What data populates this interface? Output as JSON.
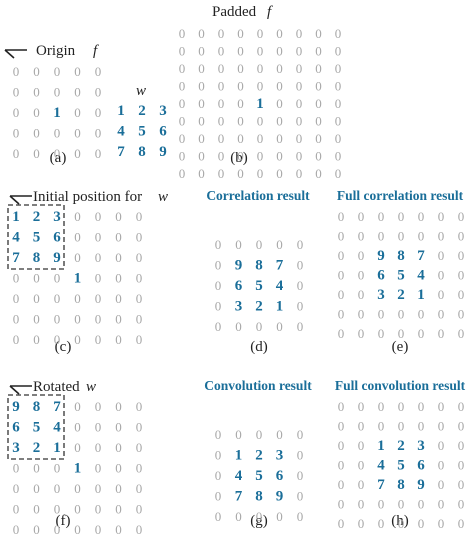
{
  "colors": {
    "highlight": "#1a6e99",
    "zero": "#a8a8a8",
    "text": "#222222"
  },
  "row1": {
    "origin_label": "Origin",
    "f_label": "f",
    "w_label": "w",
    "padded_label": "Padded",
    "padded_symbol": "f",
    "f": [
      [
        "0",
        "0",
        "0",
        "0",
        "0"
      ],
      [
        "0",
        "0",
        "0",
        "0",
        "0"
      ],
      [
        "0",
        "0",
        "1",
        "0",
        "0"
      ],
      [
        "0",
        "0",
        "0",
        "0",
        "0"
      ],
      [
        "0",
        "0",
        "0",
        "0",
        "0"
      ]
    ],
    "w": [
      [
        "1",
        "2",
        "3"
      ],
      [
        "4",
        "5",
        "6"
      ],
      [
        "7",
        "8",
        "9"
      ]
    ],
    "padded": [
      [
        "0",
        "0",
        "0",
        "0",
        "0",
        "0",
        "0",
        "0",
        "0"
      ],
      [
        "0",
        "0",
        "0",
        "0",
        "0",
        "0",
        "0",
        "0",
        "0"
      ],
      [
        "0",
        "0",
        "0",
        "0",
        "0",
        "0",
        "0",
        "0",
        "0"
      ],
      [
        "0",
        "0",
        "0",
        "0",
        "0",
        "0",
        "0",
        "0",
        "0"
      ],
      [
        "0",
        "0",
        "0",
        "0",
        "1",
        "0",
        "0",
        "0",
        "0"
      ],
      [
        "0",
        "0",
        "0",
        "0",
        "0",
        "0",
        "0",
        "0",
        "0"
      ],
      [
        "0",
        "0",
        "0",
        "0",
        "0",
        "0",
        "0",
        "0",
        "0"
      ],
      [
        "0",
        "0",
        "0",
        "0",
        "0",
        "0",
        "0",
        "0",
        "0"
      ],
      [
        "0",
        "0",
        "0",
        "0",
        "0",
        "0",
        "0",
        "0",
        "0"
      ]
    ],
    "panel_a": "(a)",
    "panel_b": "(b)"
  },
  "row2": {
    "initial_label": "Initial position for",
    "initial_symbol": "w",
    "grid": [
      [
        "1",
        "2",
        "3",
        "0",
        "0",
        "0",
        "0"
      ],
      [
        "4",
        "5",
        "6",
        "0",
        "0",
        "0",
        "0"
      ],
      [
        "7",
        "8",
        "9",
        "0",
        "0",
        "0",
        "0"
      ],
      [
        "0",
        "0",
        "0",
        "1",
        "0",
        "0",
        "0"
      ],
      [
        "0",
        "0",
        "0",
        "0",
        "0",
        "0",
        "0"
      ],
      [
        "0",
        "0",
        "0",
        "0",
        "0",
        "0",
        "0"
      ],
      [
        "0",
        "0",
        "0",
        "0",
        "0",
        "0",
        "0"
      ]
    ],
    "correlation_title": "Correlation result",
    "correlation": [
      [
        "0",
        "0",
        "0",
        "0",
        "0"
      ],
      [
        "0",
        "9",
        "8",
        "7",
        "0"
      ],
      [
        "0",
        "6",
        "5",
        "4",
        "0"
      ],
      [
        "0",
        "3",
        "2",
        "1",
        "0"
      ],
      [
        "0",
        "0",
        "0",
        "0",
        "0"
      ]
    ],
    "full_correlation_title": "Full correlation result",
    "full_correlation": [
      [
        "0",
        "0",
        "0",
        "0",
        "0",
        "0",
        "0"
      ],
      [
        "0",
        "0",
        "0",
        "0",
        "0",
        "0",
        "0"
      ],
      [
        "0",
        "0",
        "9",
        "8",
        "7",
        "0",
        "0"
      ],
      [
        "0",
        "0",
        "6",
        "5",
        "4",
        "0",
        "0"
      ],
      [
        "0",
        "0",
        "3",
        "2",
        "1",
        "0",
        "0"
      ],
      [
        "0",
        "0",
        "0",
        "0",
        "0",
        "0",
        "0"
      ],
      [
        "0",
        "0",
        "0",
        "0",
        "0",
        "0",
        "0"
      ]
    ],
    "panel_c": "(c)",
    "panel_d": "(d)",
    "panel_e": "(e)"
  },
  "row3": {
    "rotated_label": "Rotated",
    "rotated_symbol": "w",
    "grid": [
      [
        "9",
        "8",
        "7",
        "0",
        "0",
        "0",
        "0"
      ],
      [
        "6",
        "5",
        "4",
        "0",
        "0",
        "0",
        "0"
      ],
      [
        "3",
        "2",
        "1",
        "0",
        "0",
        "0",
        "0"
      ],
      [
        "0",
        "0",
        "0",
        "1",
        "0",
        "0",
        "0"
      ],
      [
        "0",
        "0",
        "0",
        "0",
        "0",
        "0",
        "0"
      ],
      [
        "0",
        "0",
        "0",
        "0",
        "0",
        "0",
        "0"
      ],
      [
        "0",
        "0",
        "0",
        "0",
        "0",
        "0",
        "0"
      ]
    ],
    "convolution_title": "Convolution result",
    "convolution": [
      [
        "0",
        "0",
        "0",
        "0",
        "0"
      ],
      [
        "0",
        "1",
        "2",
        "3",
        "0"
      ],
      [
        "0",
        "4",
        "5",
        "6",
        "0"
      ],
      [
        "0",
        "7",
        "8",
        "9",
        "0"
      ],
      [
        "0",
        "0",
        "0",
        "0",
        "0"
      ]
    ],
    "full_convolution_title": "Full convolution result",
    "full_convolution": [
      [
        "0",
        "0",
        "0",
        "0",
        "0",
        "0",
        "0"
      ],
      [
        "0",
        "0",
        "0",
        "0",
        "0",
        "0",
        "0"
      ],
      [
        "0",
        "0",
        "1",
        "2",
        "3",
        "0",
        "0"
      ],
      [
        "0",
        "0",
        "4",
        "5",
        "6",
        "0",
        "0"
      ],
      [
        "0",
        "0",
        "7",
        "8",
        "9",
        "0",
        "0"
      ],
      [
        "0",
        "0",
        "0",
        "0",
        "0",
        "0",
        "0"
      ],
      [
        "0",
        "0",
        "0",
        "0",
        "0",
        "0",
        "0"
      ]
    ],
    "panel_f": "(f)",
    "panel_g": "(g)",
    "panel_h": "(h)"
  }
}
